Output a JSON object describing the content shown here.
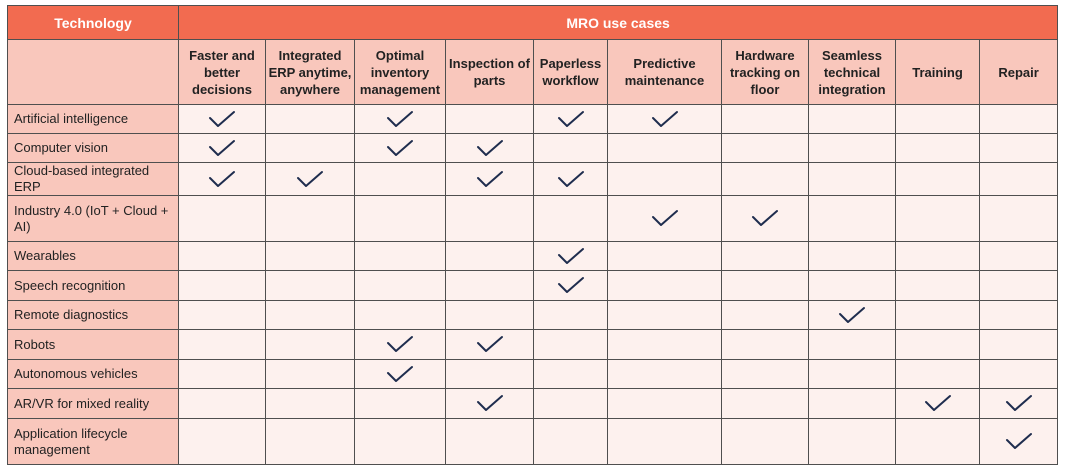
{
  "header": {
    "technology": "Technology",
    "use_cases": "MRO use cases"
  },
  "columns": [
    "Faster and better decisions",
    "Integrated ERP anytime, anywhere",
    "Optimal inventory management",
    "Inspection of parts",
    "Paperless workflow",
    "Predictive maintenance",
    "Hardware tracking on floor",
    "Seamless technical integration",
    "Training",
    "Repair"
  ],
  "rows": [
    {
      "label": "Artificial intelligence",
      "checks": [
        true,
        false,
        true,
        false,
        true,
        true,
        false,
        false,
        false,
        false
      ]
    },
    {
      "label": "Computer vision",
      "checks": [
        true,
        false,
        true,
        true,
        false,
        false,
        false,
        false,
        false,
        false
      ]
    },
    {
      "label": "Cloud-based integrated ERP",
      "checks": [
        true,
        true,
        false,
        true,
        true,
        false,
        false,
        false,
        false,
        false
      ]
    },
    {
      "label": "Industry 4.0 (IoT + Cloud + AI)",
      "checks": [
        false,
        false,
        false,
        false,
        false,
        true,
        true,
        false,
        false,
        false
      ]
    },
    {
      "label": "Wearables",
      "checks": [
        false,
        false,
        false,
        false,
        true,
        false,
        false,
        false,
        false,
        false
      ]
    },
    {
      "label": "Speech recognition",
      "checks": [
        false,
        false,
        false,
        false,
        true,
        false,
        false,
        false,
        false,
        false
      ]
    },
    {
      "label": "Remote diagnostics",
      "checks": [
        false,
        false,
        false,
        false,
        false,
        false,
        false,
        true,
        false,
        false
      ]
    },
    {
      "label": "Robots",
      "checks": [
        false,
        false,
        true,
        true,
        false,
        false,
        false,
        false,
        false,
        false
      ]
    },
    {
      "label": "Autonomous vehicles",
      "checks": [
        false,
        false,
        true,
        false,
        false,
        false,
        false,
        false,
        false,
        false
      ]
    },
    {
      "label": "AR/VR for mixed reality",
      "checks": [
        false,
        false,
        false,
        true,
        false,
        false,
        false,
        false,
        true,
        true
      ]
    },
    {
      "label": "Application lifecycle management",
      "checks": [
        false,
        false,
        false,
        false,
        false,
        false,
        false,
        false,
        false,
        true
      ]
    }
  ],
  "colors": {
    "header_bg": "#f26b50",
    "subheader_bg": "#f9c7bc",
    "cell_bg": "#fdf1ee",
    "check": "#1f2d4e"
  },
  "icons": {
    "check": "checkmark-icon"
  }
}
